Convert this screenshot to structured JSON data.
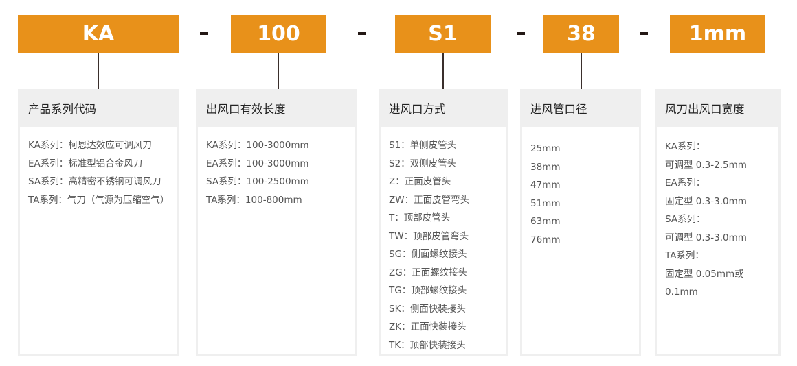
{
  "model_code": {
    "segments": [
      "KA",
      "100",
      "S1",
      "38",
      "1mm"
    ],
    "separator": "-"
  },
  "colors": {
    "accent": "#e8911a",
    "header_bg": "#efefef",
    "text": "#555555"
  },
  "cards": [
    {
      "title": "产品系列代码",
      "items": [
        "KA系列：柯恩达效应可调风刀",
        "EA系列：标准型铝合金风刀",
        "SA系列：高精密不锈钢可调风刀",
        "TA系列：气刀（气源为压缩空气）"
      ]
    },
    {
      "title": "出风口有效长度",
      "items": [
        "KA系列：100-3000mm",
        "EA系列：100-3000mm",
        "SA系列：100-2500mm",
        "TA系列：100-800mm"
      ]
    },
    {
      "title": "进风口方式",
      "items": [
        "S1：单侧皮管头",
        "S2：双侧皮管头",
        "Z：正面皮管头",
        "ZW：正面皮管弯头",
        "T：顶部皮管头",
        "TW：顶部皮管弯头",
        "SG：侧面螺纹接头",
        "ZG：正面螺纹接头",
        "TG：顶部螺纹接头",
        "SK：侧面快装接头",
        "ZK：正面快装接头",
        "TK：顶部快装接头"
      ]
    },
    {
      "title": "进风管口径",
      "items": [
        "25mm",
        "38mm",
        "47mm",
        "51mm",
        "63mm",
        "76mm"
      ]
    },
    {
      "title": "风刀出风口宽度",
      "items": [
        "KA系列：",
        "可调型 0.3-2.5mm",
        "EA系列：",
        "固定型 0.3-3.0mm",
        "SA系列：",
        "可调型 0.3-3.0mm",
        "TA系列：",
        "固定型 0.05mm或",
        "0.1mm"
      ]
    }
  ]
}
